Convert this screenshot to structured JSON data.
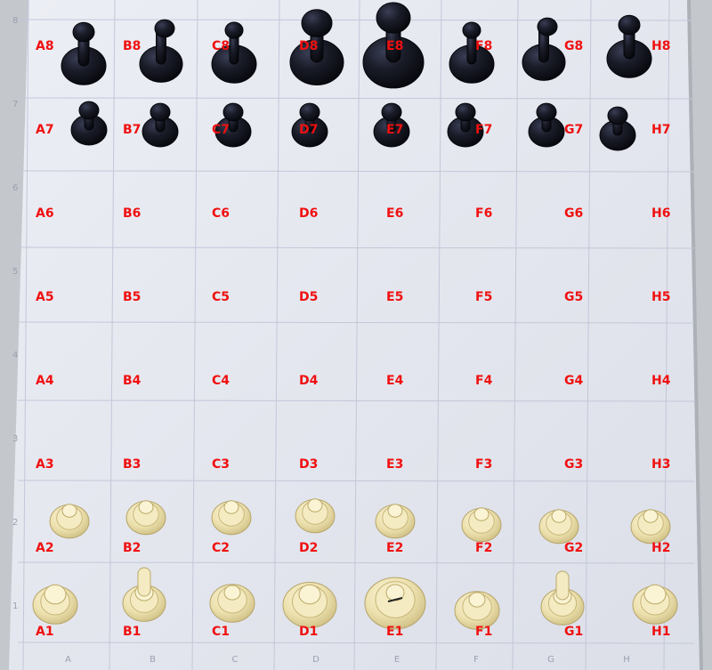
{
  "photo": {
    "subject": "chessboard-with-pieces",
    "colors": {
      "board": "#e6e8ef",
      "grid_line": "#c2c6d6",
      "label": "#f01010",
      "black_piece": "#14161f",
      "white_piece": "#efe4b4"
    }
  },
  "files": [
    "A",
    "B",
    "C",
    "D",
    "E",
    "F",
    "G",
    "H"
  ],
  "ranks": [
    "8",
    "7",
    "6",
    "5",
    "4",
    "3",
    "2",
    "1"
  ],
  "squares": [
    {
      "label": "A8",
      "piece": "black-rook"
    },
    {
      "label": "B8",
      "piece": "black-knight"
    },
    {
      "label": "C8",
      "piece": "black-bishop"
    },
    {
      "label": "D8",
      "piece": "black-queen"
    },
    {
      "label": "E8",
      "piece": "black-king"
    },
    {
      "label": "F8",
      "piece": "black-bishop"
    },
    {
      "label": "G8",
      "piece": "black-knight"
    },
    {
      "label": "H8",
      "piece": "black-rook"
    },
    {
      "label": "A7",
      "piece": "black-pawn"
    },
    {
      "label": "B7",
      "piece": "black-pawn"
    },
    {
      "label": "C7",
      "piece": "black-pawn"
    },
    {
      "label": "D7",
      "piece": "black-pawn"
    },
    {
      "label": "E7",
      "piece": "black-pawn"
    },
    {
      "label": "F7",
      "piece": "black-pawn"
    },
    {
      "label": "G7",
      "piece": "black-pawn"
    },
    {
      "label": "H7",
      "piece": "black-pawn"
    },
    {
      "label": "A6",
      "piece": ""
    },
    {
      "label": "B6",
      "piece": ""
    },
    {
      "label": "C6",
      "piece": ""
    },
    {
      "label": "D6",
      "piece": ""
    },
    {
      "label": "E6",
      "piece": ""
    },
    {
      "label": "F6",
      "piece": ""
    },
    {
      "label": "G6",
      "piece": ""
    },
    {
      "label": "H6",
      "piece": ""
    },
    {
      "label": "A5",
      "piece": ""
    },
    {
      "label": "B5",
      "piece": ""
    },
    {
      "label": "C5",
      "piece": ""
    },
    {
      "label": "D5",
      "piece": ""
    },
    {
      "label": "E5",
      "piece": ""
    },
    {
      "label": "F5",
      "piece": ""
    },
    {
      "label": "G5",
      "piece": ""
    },
    {
      "label": "H5",
      "piece": ""
    },
    {
      "label": "A4",
      "piece": ""
    },
    {
      "label": "B4",
      "piece": ""
    },
    {
      "label": "C4",
      "piece": ""
    },
    {
      "label": "D4",
      "piece": ""
    },
    {
      "label": "E4",
      "piece": ""
    },
    {
      "label": "F4",
      "piece": ""
    },
    {
      "label": "G4",
      "piece": ""
    },
    {
      "label": "H4",
      "piece": ""
    },
    {
      "label": "A3",
      "piece": ""
    },
    {
      "label": "B3",
      "piece": ""
    },
    {
      "label": "C3",
      "piece": ""
    },
    {
      "label": "D3",
      "piece": ""
    },
    {
      "label": "E3",
      "piece": ""
    },
    {
      "label": "F3",
      "piece": ""
    },
    {
      "label": "G3",
      "piece": ""
    },
    {
      "label": "H3",
      "piece": ""
    },
    {
      "label": "A2",
      "piece": "white-pawn"
    },
    {
      "label": "B2",
      "piece": "white-pawn"
    },
    {
      "label": "C2",
      "piece": "white-pawn"
    },
    {
      "label": "D2",
      "piece": "white-pawn"
    },
    {
      "label": "E2",
      "piece": "white-pawn"
    },
    {
      "label": "F2",
      "piece": "white-pawn"
    },
    {
      "label": "G2",
      "piece": "white-pawn"
    },
    {
      "label": "H2",
      "piece": "white-pawn"
    },
    {
      "label": "A1",
      "piece": "white-rook"
    },
    {
      "label": "B1",
      "piece": "white-knight"
    },
    {
      "label": "C1",
      "piece": "white-bishop"
    },
    {
      "label": "D1",
      "piece": "white-queen"
    },
    {
      "label": "E1",
      "piece": "white-king"
    },
    {
      "label": "F1",
      "piece": "white-bishop"
    },
    {
      "label": "G1",
      "piece": "white-knight"
    },
    {
      "label": "H1",
      "piece": "white-rook"
    }
  ],
  "edge_marks": {
    "bottom": [
      "A",
      "B",
      "C",
      "D",
      "E",
      "F",
      "G",
      "H"
    ],
    "left": [
      "1",
      "2",
      "3",
      "4",
      "5",
      "6",
      "7",
      "8"
    ]
  }
}
